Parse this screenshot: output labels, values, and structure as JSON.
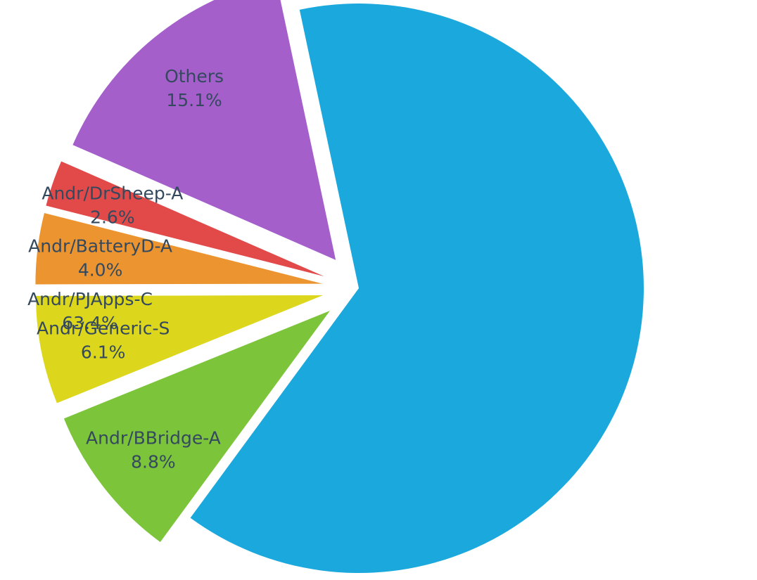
{
  "chart_data": {
    "type": "pie",
    "title": "",
    "slices": [
      {
        "label": "Andr/PJApps-C",
        "value": 63.4,
        "value_label": "63.4%",
        "color": "#1ba9dd",
        "exploded": false
      },
      {
        "label": "Andr/BBridge-A",
        "value": 8.8,
        "value_label": "8.8%",
        "color": "#7cc53a",
        "exploded": true
      },
      {
        "label": "Andr/Generic-S",
        "value": 6.1,
        "value_label": "6.1%",
        "color": "#dcd71c",
        "exploded": true
      },
      {
        "label": "Andr/BatteryD-A",
        "value": 4.0,
        "value_label": "4.0%",
        "color": "#ec9530",
        "exploded": true
      },
      {
        "label": "Andr/DrSheep-A",
        "value": 2.6,
        "value_label": "2.6%",
        "color": "#e24a4a",
        "exploded": true
      },
      {
        "label": "Others",
        "value": 15.1,
        "value_label": "15.1%",
        "color": "#a45fcb",
        "exploded": true
      }
    ],
    "start_angle_deg": -12,
    "direction": "clockwise",
    "legend": "none"
  }
}
